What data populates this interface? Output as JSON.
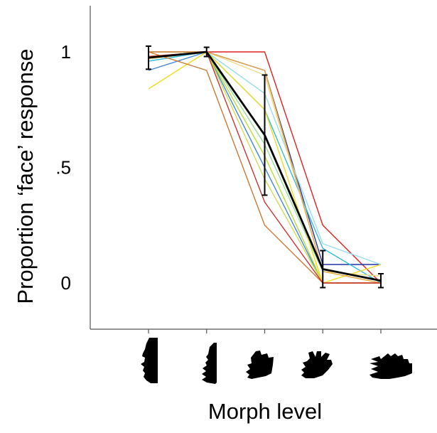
{
  "chart_data": {
    "type": "line",
    "xlabel": "Morph level",
    "ylabel": "Proportion ‘face’ response",
    "x": [
      1,
      2,
      3,
      4,
      5
    ],
    "ylim": [
      -0.2,
      1.2
    ],
    "yticks": [
      0,
      0.5,
      1
    ],
    "ytick_labels": [
      "0",
      ".5",
      "1"
    ],
    "x_tick_icons": [
      "face-profile-icon",
      "face-hand-morph-icon",
      "half-hand-morph-icon",
      "hand-face-morph-icon",
      "hand-icon"
    ],
    "grid": false,
    "legend": "none",
    "mean_series": {
      "color": "#000000",
      "values": [
        0.975,
        1.0,
        0.64,
        0.06,
        0.01
      ],
      "error": [
        0.05,
        0.02,
        0.26,
        0.08,
        0.03
      ]
    },
    "series": [
      {
        "color": "#dd2222",
        "values": [
          1.0,
          1.0,
          1.0,
          0.25,
          0.0
        ]
      },
      {
        "color": "#2233aa",
        "values": [
          1.0,
          1.0,
          0.92,
          0.08,
          0.08
        ]
      },
      {
        "color": "#4488dd",
        "values": [
          0.92,
          1.0,
          0.5,
          0.0,
          0.0
        ]
      },
      {
        "color": "#33bbdd",
        "values": [
          0.96,
          1.0,
          0.75,
          0.15,
          0.0
        ]
      },
      {
        "color": "#99ddee",
        "values": [
          0.97,
          1.0,
          0.82,
          0.17,
          0.08
        ]
      },
      {
        "color": "#99dd99",
        "values": [
          0.97,
          1.0,
          0.6,
          0.05,
          0.0
        ]
      },
      {
        "color": "#bbdd33",
        "values": [
          0.98,
          1.0,
          0.55,
          0.0,
          0.0
        ]
      },
      {
        "color": "#ccdd55",
        "values": [
          0.97,
          1.0,
          0.45,
          0.0,
          0.0
        ]
      },
      {
        "color": "#eedd22",
        "values": [
          0.84,
          1.0,
          0.75,
          0.0,
          0.08
        ]
      },
      {
        "color": "#eedd88",
        "values": [
          0.97,
          1.0,
          0.9,
          0.05,
          0.03
        ]
      },
      {
        "color": "#e8a640",
        "values": [
          1.0,
          1.0,
          0.92,
          0.05,
          0.0
        ]
      },
      {
        "color": "#cc7733",
        "values": [
          1.0,
          0.92,
          0.25,
          0.0,
          0.0
        ]
      },
      {
        "color": "#cc3333",
        "values": [
          0.98,
          1.0,
          0.35,
          0.0,
          0.0
        ]
      }
    ]
  }
}
